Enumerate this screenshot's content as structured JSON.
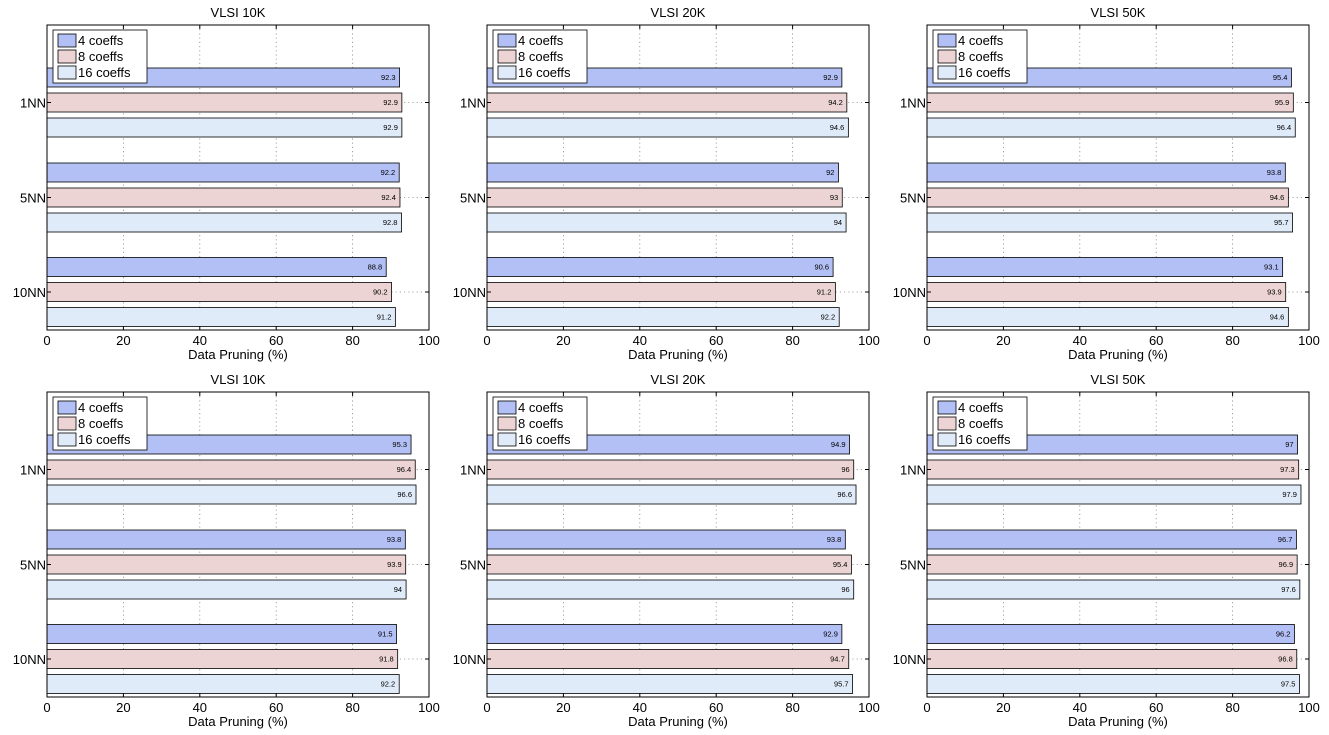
{
  "chart_data": [
    {
      "type": "bar",
      "orientation": "horizontal",
      "title": "VLSI 10K",
      "categories": [
        "1NN",
        "5NN",
        "10NN"
      ],
      "xlabel": "Data Pruning (%)",
      "xlim": [
        0,
        100
      ],
      "xticks": [
        "0",
        "20",
        "40",
        "60",
        "80",
        "100"
      ],
      "grid": true,
      "legend_position": "top-left",
      "series": [
        {
          "name": "4 coeffs",
          "color": "#b3c0f5",
          "values": [
            92.3,
            92.2,
            88.8
          ],
          "labels": [
            "92.3",
            "92.2",
            "88.8"
          ]
        },
        {
          "name": "8 coeffs",
          "color": "#ecd4d4",
          "values": [
            92.9,
            92.4,
            90.2
          ],
          "labels": [
            "92.9",
            "92.4",
            "90.2"
          ]
        },
        {
          "name": "16 coeffs",
          "color": "#e0ebfa",
          "values": [
            92.9,
            92.8,
            91.2
          ],
          "labels": [
            "92.9",
            "92.8",
            "91.2"
          ]
        }
      ]
    },
    {
      "type": "bar",
      "orientation": "horizontal",
      "title": "VLSI 20K",
      "categories": [
        "1NN",
        "5NN",
        "10NN"
      ],
      "xlabel": "Data Pruning (%)",
      "xlim": [
        0,
        100
      ],
      "xticks": [
        "0",
        "20",
        "40",
        "60",
        "80",
        "100"
      ],
      "grid": true,
      "legend_position": "top-left",
      "series": [
        {
          "name": "4 coeffs",
          "color": "#b3c0f5",
          "values": [
            92.9,
            92,
            90.6
          ],
          "labels": [
            "92.9",
            "92",
            "90.6"
          ]
        },
        {
          "name": "8 coeffs",
          "color": "#ecd4d4",
          "values": [
            94.2,
            93,
            91.2
          ],
          "labels": [
            "94.2",
            "93",
            "91.2"
          ]
        },
        {
          "name": "16 coeffs",
          "color": "#e0ebfa",
          "values": [
            94.6,
            94,
            92.2
          ],
          "labels": [
            "94.6",
            "94",
            "92.2"
          ]
        }
      ]
    },
    {
      "type": "bar",
      "orientation": "horizontal",
      "title": "VLSI 50K",
      "categories": [
        "1NN",
        "5NN",
        "10NN"
      ],
      "xlabel": "Data Pruning (%)",
      "xlim": [
        0,
        100
      ],
      "xticks": [
        "0",
        "20",
        "40",
        "60",
        "80",
        "100"
      ],
      "grid": true,
      "legend_position": "top-left",
      "series": [
        {
          "name": "4 coeffs",
          "color": "#b3c0f5",
          "values": [
            95.4,
            93.8,
            93.1
          ],
          "labels": [
            "95.4",
            "93.8",
            "93.1"
          ]
        },
        {
          "name": "8 coeffs",
          "color": "#ecd4d4",
          "values": [
            95.9,
            94.6,
            93.9
          ],
          "labels": [
            "95.9",
            "94.6",
            "93.9"
          ]
        },
        {
          "name": "16 coeffs",
          "color": "#e0ebfa",
          "values": [
            96.4,
            95.7,
            94.6
          ],
          "labels": [
            "96.4",
            "95.7",
            "94.6"
          ]
        }
      ]
    },
    {
      "type": "bar",
      "orientation": "horizontal",
      "title": "VLSI 10K",
      "categories": [
        "1NN",
        "5NN",
        "10NN"
      ],
      "xlabel": "Data Pruning (%)",
      "xlim": [
        0,
        100
      ],
      "xticks": [
        "0",
        "20",
        "40",
        "60",
        "80",
        "100"
      ],
      "grid": true,
      "legend_position": "top-left",
      "series": [
        {
          "name": "4 coeffs",
          "color": "#b3c0f5",
          "values": [
            95.3,
            93.8,
            91.5
          ],
          "labels": [
            "95.3",
            "93.8",
            "91.5"
          ]
        },
        {
          "name": "8 coeffs",
          "color": "#ecd4d4",
          "values": [
            96.4,
            93.9,
            91.8
          ],
          "labels": [
            "96.4",
            "93.9",
            "91.8"
          ]
        },
        {
          "name": "16 coeffs",
          "color": "#e0ebfa",
          "values": [
            96.6,
            94,
            92.2
          ],
          "labels": [
            "96.6",
            "94",
            "92.2"
          ]
        }
      ]
    },
    {
      "type": "bar",
      "orientation": "horizontal",
      "title": "VLSI 20K",
      "categories": [
        "1NN",
        "5NN",
        "10NN"
      ],
      "xlabel": "Data Pruning (%)",
      "xlim": [
        0,
        100
      ],
      "xticks": [
        "0",
        "20",
        "40",
        "60",
        "80",
        "100"
      ],
      "grid": true,
      "legend_position": "top-left",
      "series": [
        {
          "name": "4 coeffs",
          "color": "#b3c0f5",
          "values": [
            94.9,
            93.8,
            92.9
          ],
          "labels": [
            "94.9",
            "93.8",
            "92.9"
          ]
        },
        {
          "name": "8 coeffs",
          "color": "#ecd4d4",
          "values": [
            96,
            95.4,
            94.7
          ],
          "labels": [
            "96",
            "95.4",
            "94.7"
          ]
        },
        {
          "name": "16 coeffs",
          "color": "#e0ebfa",
          "values": [
            96.6,
            96,
            95.7
          ],
          "labels": [
            "96.6",
            "96",
            "95.7"
          ]
        }
      ]
    },
    {
      "type": "bar",
      "orientation": "horizontal",
      "title": "VLSI 50K",
      "categories": [
        "1NN",
        "5NN",
        "10NN"
      ],
      "xlabel": "Data Pruning (%)",
      "xlim": [
        0,
        100
      ],
      "xticks": [
        "0",
        "20",
        "40",
        "60",
        "80",
        "100"
      ],
      "grid": true,
      "legend_position": "top-left",
      "series": [
        {
          "name": "4 coeffs",
          "color": "#b3c0f5",
          "values": [
            97,
            96.7,
            96.2
          ],
          "labels": [
            "97",
            "96.7",
            "96.2"
          ]
        },
        {
          "name": "8 coeffs",
          "color": "#ecd4d4",
          "values": [
            97.3,
            96.9,
            96.8
          ],
          "labels": [
            "97.3",
            "96.9",
            "96.8"
          ]
        },
        {
          "name": "16 coeffs",
          "color": "#e0ebfa",
          "values": [
            97.9,
            97.6,
            97.5
          ],
          "labels": [
            "97.9",
            "97.6",
            "97.5"
          ]
        }
      ]
    }
  ]
}
